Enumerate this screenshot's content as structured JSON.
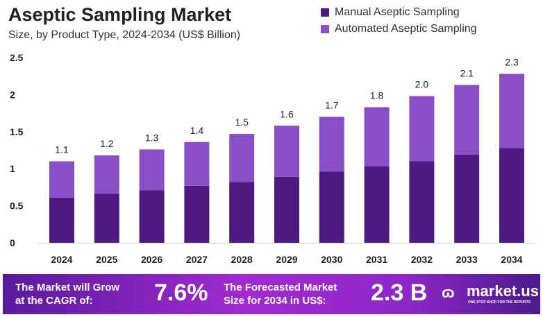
{
  "chart_data": {
    "type": "bar",
    "stacked": true,
    "title": "Aseptic Sampling Market",
    "subtitle": "Size, by Product Type, 2024-2034 (US$ Billion)",
    "categories": [
      "2024",
      "2025",
      "2026",
      "2027",
      "2028",
      "2029",
      "2030",
      "2031",
      "2032",
      "2033",
      "2034"
    ],
    "series": [
      {
        "name": "Manual Aseptic Sampling",
        "color": "#4e1a80",
        "values": [
          0.61,
          0.66,
          0.71,
          0.77,
          0.82,
          0.89,
          0.96,
          1.03,
          1.1,
          1.19,
          1.28
        ]
      },
      {
        "name": "Automated Aseptic Sampling",
        "color": "#8a4fc8",
        "values": [
          0.49,
          0.52,
          0.55,
          0.59,
          0.65,
          0.69,
          0.74,
          0.8,
          0.88,
          0.94,
          1.0
        ]
      }
    ],
    "totals": [
      "1.1",
      "1.2",
      "1.3",
      "1.4",
      "1.5",
      "1.6",
      "1.7",
      "1.8",
      "2.0",
      "2.1",
      "2.3"
    ],
    "yticks": [
      "0",
      "0.5",
      "1",
      "1.5",
      "2",
      "2.5"
    ],
    "ylim": [
      0,
      2.5
    ],
    "grid": false,
    "legend": "top-right"
  },
  "footer": {
    "cagr_label_1": "The Market will Grow",
    "cagr_label_2": "at the CAGR of:",
    "cagr": "7.6%",
    "forecast_label_1": "The Forecasted Market",
    "forecast_label_2": "Size for 2034 in US$:",
    "forecast": "2.3 B",
    "brand": "market.us",
    "tagline": "ONE STOP SHOP FOR THE REPORTS"
  }
}
